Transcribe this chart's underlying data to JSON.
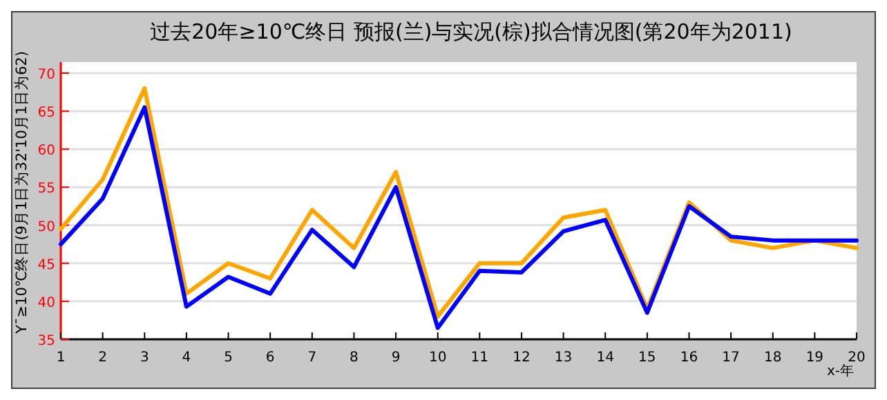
{
  "chart_data": {
    "type": "line",
    "title": "过去20年≥10℃终日 预报(兰)与实况(棕)拟合情况图(第20年为2011)",
    "xlabel": "x-年",
    "ylabel": "Y¯≥10℃终日(9月1日为32'10月1日为62)",
    "x": [
      1,
      2,
      3,
      4,
      5,
      6,
      7,
      8,
      9,
      10,
      11,
      12,
      13,
      14,
      15,
      16,
      17,
      18,
      19,
      20
    ],
    "xlim": [
      1,
      20
    ],
    "xticks": [
      1,
      2,
      3,
      4,
      5,
      6,
      7,
      8,
      9,
      10,
      11,
      12,
      13,
      14,
      15,
      16,
      17,
      18,
      19,
      20
    ],
    "ylim": [
      35,
      70
    ],
    "yticks": [
      35,
      40,
      45,
      50,
      55,
      60,
      65,
      70
    ],
    "grid": "y",
    "marker": "none",
    "line_style": "solid",
    "series": [
      {
        "color": "#ffa500",
        "values": [
          49.5,
          56,
          68,
          41,
          45,
          43,
          52,
          47,
          57,
          38,
          45,
          45,
          51,
          52,
          39,
          53,
          48,
          47,
          48,
          47
        ]
      },
      {
        "color": "#0000ff",
        "values": [
          47.5,
          53.5,
          65.5,
          39.3,
          43.2,
          41,
          49.4,
          44.5,
          55,
          36.5,
          44,
          43.8,
          49.2,
          50.7,
          38.5,
          52.5,
          48.5,
          48,
          48,
          48
        ]
      }
    ]
  }
}
